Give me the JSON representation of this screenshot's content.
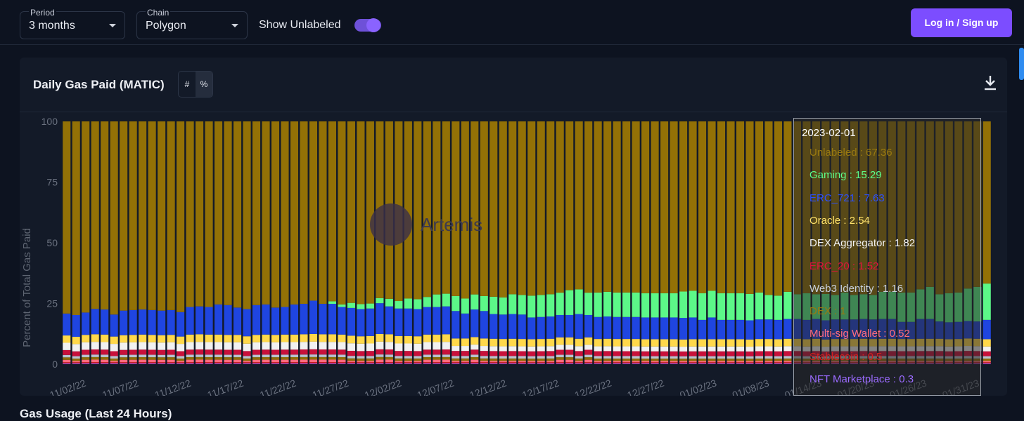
{
  "filters": {
    "period": {
      "label": "Period",
      "value": "3 months"
    },
    "chain": {
      "label": "Chain",
      "value": "Polygon"
    },
    "show_unlabeled": {
      "label": "Show Unlabeled",
      "on": true
    }
  },
  "auth": {
    "login_label": "Log in / Sign up"
  },
  "card": {
    "title": "Daily Gas Paid (MATIC)",
    "mode_options": [
      "#",
      "%"
    ],
    "active_mode": "%"
  },
  "watermark": "Artemis",
  "next_section_title": "Gas Usage (Last 24 Hours)",
  "tooltip": {
    "date": "2023-02-01",
    "rows": [
      {
        "name": "Unlabeled",
        "value": "67.36",
        "color": "#9a7a10"
      },
      {
        "name": "Gaming",
        "value": "15.29",
        "color": "#5dff8a"
      },
      {
        "name": "ERC_721",
        "value": "7.63",
        "color": "#2b4fff"
      },
      {
        "name": "Oracle",
        "value": "2.54",
        "color": "#ffe36b"
      },
      {
        "name": "DEX Aggregator",
        "value": "1.82",
        "color": "#f2f2f2"
      },
      {
        "name": "ERC_20",
        "value": "1.52",
        "color": "#e0143c"
      },
      {
        "name": "Web3 Identity",
        "value": "1.16",
        "color": "#c7cfdb"
      },
      {
        "name": "DEX",
        "value": "1",
        "color": "#9a7a10"
      },
      {
        "name": "Multi-sig Wallet",
        "value": "0.52",
        "color": "#ff6b7d"
      },
      {
        "name": "Stablecoin",
        "value": "0.5",
        "color": "#d42020"
      },
      {
        "name": "NFT Marketplace",
        "value": "0.3",
        "color": "#9b6bff"
      }
    ]
  },
  "chart_data": {
    "type": "bar",
    "stacked": true,
    "ylabel": "Percent of Total Gas Paid",
    "ylim": [
      0,
      100
    ],
    "yticks": [
      0,
      25,
      50,
      75,
      100
    ],
    "xticks": [
      "11/02/22",
      "11/07/22",
      "11/12/22",
      "11/17/22",
      "11/22/22",
      "11/27/22",
      "12/02/22",
      "12/07/22",
      "12/12/22",
      "12/17/22",
      "12/22/22",
      "12/27/22",
      "01/02/23",
      "01/08/23",
      "01/14/23",
      "01/20/23",
      "01/26/23",
      "01/31/23"
    ],
    "x_start": "2022-11-02",
    "x_end": "2023-02-01",
    "highlighted_category": "2023-02-01",
    "series_colors": {
      "Unlabeled": "#937106",
      "Gaming": "#5cf888",
      "ERC_721": "#1f45e0",
      "Oracle": "#ffd84a",
      "DEX Aggregator": "#f1f1f1",
      "ERC_20": "#c8103a",
      "Web3 Identity": "#b9c2cf",
      "DEX": "#8f6d08",
      "Multi-sig Wallet": "#ff6b7d",
      "Stablecoin": "#d41818",
      "NFT Marketplace": "#8a5cf5"
    },
    "series": [
      {
        "name": "Unlabeled",
        "values": [
          79,
          80,
          77,
          74,
          75,
          79,
          77,
          76,
          75,
          76,
          77,
          76,
          78,
          74,
          73,
          74,
          73,
          74,
          75,
          76,
          74,
          73,
          75,
          74,
          73,
          72,
          70,
          72,
          71,
          73,
          72,
          74,
          73,
          69,
          70,
          72,
          71,
          72,
          70,
          69,
          68,
          70,
          71,
          69,
          70,
          71,
          72,
          70,
          71,
          72,
          71,
          70,
          69,
          68,
          68,
          69,
          70,
          69,
          70,
          70,
          70,
          71,
          71,
          71,
          71,
          71,
          70,
          71,
          70,
          71,
          71,
          71,
          72,
          70,
          71,
          72,
          69,
          70,
          71,
          70,
          72,
          71,
          70,
          71,
          70,
          71,
          69,
          69,
          70,
          70,
          68,
          67,
          70,
          71,
          70,
          67,
          67,
          67
        ]
      },
      {
        "name": "Gaming",
        "values": [
          0,
          0,
          0,
          0,
          0,
          0,
          0,
          0,
          0,
          0,
          0,
          0,
          0,
          0,
          0,
          0,
          0,
          0,
          0,
          0,
          0,
          0,
          0,
          0,
          0,
          0,
          0,
          0,
          1,
          1,
          2,
          2,
          2,
          2,
          3,
          3,
          4,
          4,
          4,
          5,
          5,
          6,
          6,
          6,
          6,
          7,
          7,
          8,
          8,
          9,
          9,
          9,
          9,
          10,
          10,
          9,
          10,
          10,
          10,
          10,
          10,
          10,
          10,
          10,
          10,
          11,
          11,
          11,
          11,
          11,
          11,
          11,
          11,
          11,
          10,
          10,
          11,
          10,
          11,
          10,
          11,
          10,
          11,
          10,
          10,
          10,
          11,
          11,
          12,
          12,
          12,
          13,
          11,
          12,
          12,
          13,
          14,
          15
        ]
      },
      {
        "name": "ERC_721",
        "values": [
          9,
          9,
          9,
          10,
          10,
          9,
          10,
          10,
          10,
          10,
          10,
          10,
          10,
          11,
          11,
          11,
          12,
          12,
          11,
          11,
          12,
          12,
          11,
          11,
          12,
          12,
          13,
          12,
          12,
          11,
          11,
          11,
          11,
          12,
          11,
          11,
          11,
          11,
          11,
          11,
          11,
          11,
          10,
          11,
          11,
          10,
          10,
          10,
          10,
          9,
          9,
          9,
          9,
          9,
          10,
          9,
          9,
          9,
          9,
          9,
          9,
          9,
          9,
          9,
          9,
          9,
          9,
          8,
          9,
          8,
          8,
          8,
          8,
          8,
          8,
          8,
          8,
          8,
          8,
          8,
          8,
          8,
          8,
          8,
          8,
          8,
          8,
          8,
          7,
          7,
          8,
          8,
          7,
          7,
          7,
          7,
          7,
          8
        ]
      },
      {
        "name": "Oracle",
        "values": [
          3,
          3,
          3,
          3,
          3,
          3,
          3,
          3,
          3,
          3,
          3,
          3,
          3,
          3,
          3,
          3,
          3,
          3,
          3,
          3,
          3,
          3,
          3,
          3,
          3,
          3,
          3,
          3,
          3,
          3,
          3,
          3,
          3,
          3,
          3,
          3,
          3,
          3,
          3,
          3,
          3,
          3,
          3,
          3,
          3,
          3,
          3,
          3,
          3,
          3,
          3,
          3,
          3,
          3,
          3,
          3,
          3,
          3,
          3,
          3,
          3,
          3,
          3,
          3,
          3,
          3,
          3,
          3,
          3,
          3,
          3,
          3,
          3,
          3,
          3,
          3,
          3,
          3,
          3,
          3,
          3,
          3,
          3,
          3,
          3,
          3,
          3,
          3,
          3,
          3,
          3,
          3,
          3,
          3,
          3,
          3,
          3,
          3
        ]
      },
      {
        "name": "DEX Aggregator",
        "values": [
          3,
          3,
          3,
          3,
          3,
          3,
          3,
          3,
          3,
          3,
          3,
          3,
          3,
          3,
          3,
          3,
          3,
          3,
          3,
          3,
          3,
          3,
          3,
          3,
          3,
          3,
          3,
          3,
          3,
          3,
          3,
          3,
          3,
          3,
          3,
          3,
          3,
          3,
          3,
          3,
          3,
          2,
          2,
          2,
          2,
          2,
          2,
          2,
          2,
          2,
          2,
          2,
          2,
          2,
          2,
          2,
          2,
          2,
          2,
          2,
          2,
          2,
          2,
          2,
          2,
          2,
          2,
          2,
          2,
          2,
          2,
          2,
          2,
          2,
          2,
          2,
          2,
          2,
          2,
          2,
          2,
          2,
          2,
          2,
          2,
          2,
          2,
          2,
          2,
          2,
          2,
          2,
          2,
          2,
          2,
          2,
          2,
          2
        ]
      },
      {
        "name": "ERC_20",
        "values": [
          2,
          2,
          2,
          2,
          2,
          2,
          2,
          2,
          2,
          2,
          2,
          2,
          2,
          2,
          2,
          2,
          2,
          2,
          2,
          2,
          2,
          2,
          2,
          2,
          2,
          2,
          2,
          2,
          2,
          2,
          2,
          2,
          2,
          2,
          2,
          2,
          2,
          2,
          2,
          2,
          2,
          2,
          2,
          2,
          2,
          2,
          2,
          2,
          2,
          2,
          2,
          2,
          2,
          2,
          2,
          2,
          2,
          2,
          2,
          2,
          2,
          2,
          2,
          2,
          2,
          2,
          2,
          2,
          2,
          2,
          2,
          2,
          2,
          2,
          2,
          2,
          2,
          2,
          2,
          2,
          2,
          2,
          2,
          2,
          2,
          2,
          2,
          2,
          2,
          2,
          2,
          2,
          2,
          2,
          2,
          2,
          2,
          2
        ]
      },
      {
        "name": "Web3 Identity",
        "values": [
          1,
          1,
          1,
          1,
          1,
          1,
          1,
          1,
          1,
          1,
          1,
          1,
          1,
          1,
          1,
          1,
          1,
          1,
          1,
          1,
          1,
          1,
          1,
          1,
          1,
          1,
          1,
          1,
          1,
          1,
          1,
          1,
          1,
          1,
          1,
          1,
          1,
          1,
          1,
          1,
          1,
          1,
          1,
          1,
          1,
          1,
          1,
          1,
          1,
          1,
          1,
          1,
          1,
          1,
          1,
          1,
          1,
          1,
          1,
          1,
          1,
          1,
          1,
          1,
          1,
          1,
          1,
          1,
          1,
          1,
          1,
          1,
          1,
          1,
          1,
          1,
          1,
          1,
          1,
          1,
          1,
          1,
          1,
          1,
          1,
          1,
          1,
          1,
          1,
          1,
          1,
          1,
          1,
          1,
          1,
          1,
          1,
          1
        ]
      },
      {
        "name": "DEX",
        "values": [
          1,
          1,
          1,
          1,
          1,
          1,
          1,
          1,
          1,
          1,
          1,
          1,
          1,
          1,
          1,
          1,
          1,
          1,
          1,
          1,
          1,
          1,
          1,
          1,
          1,
          1,
          1,
          1,
          1,
          1,
          1,
          1,
          1,
          1,
          1,
          1,
          1,
          1,
          1,
          1,
          1,
          1,
          1,
          1,
          1,
          1,
          1,
          1,
          1,
          1,
          1,
          1,
          1,
          1,
          1,
          1,
          1,
          1,
          1,
          1,
          1,
          1,
          1,
          1,
          1,
          1,
          1,
          1,
          1,
          1,
          1,
          1,
          1,
          1,
          1,
          1,
          1,
          1,
          1,
          1,
          1,
          1,
          1,
          1,
          1,
          1,
          1,
          1,
          1,
          1,
          1,
          1,
          1,
          1,
          1,
          1,
          1,
          1
        ]
      },
      {
        "name": "Multi-sig Wallet",
        "values": [
          1,
          0.5,
          1,
          1,
          1,
          0.5,
          1,
          1,
          1,
          1,
          1,
          1,
          0.5,
          1,
          1,
          1,
          1,
          1,
          1,
          0.5,
          1,
          1,
          1,
          1,
          1,
          1,
          1,
          1,
          1,
          1,
          0.5,
          0.5,
          0.5,
          1,
          1,
          0.5,
          0.5,
          0.5,
          1,
          1,
          1,
          0.5,
          0.5,
          1,
          0.5,
          0.5,
          0.5,
          0.5,
          0.5,
          0.5,
          0.5,
          0.5,
          1,
          1,
          0.5,
          1,
          0.5,
          0.5,
          0.5,
          0.5,
          0.5,
          0.5,
          0.5,
          0.5,
          0.5,
          0.5,
          0.5,
          0.5,
          0.5,
          0.5,
          0.5,
          0.5,
          0.5,
          0.5,
          0.5,
          0.5,
          0.5,
          0.5,
          0.5,
          0.5,
          0.5,
          0.5,
          0.5,
          0.5,
          0.5,
          0.5,
          0.5,
          0.5,
          0.5,
          0.5,
          0.5,
          0.5,
          0.5,
          0.5,
          0.5,
          0.5,
          0.5,
          0.5
        ]
      },
      {
        "name": "Stablecoin",
        "values": [
          0.5,
          0.5,
          0.5,
          0.5,
          0.5,
          0.5,
          0.5,
          0.5,
          0.5,
          0.5,
          0.5,
          0.5,
          0.5,
          0.5,
          0.5,
          0.5,
          0.5,
          0.5,
          0.5,
          0.5,
          0.5,
          0.5,
          0.5,
          0.5,
          0.5,
          0.5,
          0.5,
          0.5,
          0.5,
          0.5,
          0.5,
          0.5,
          0.5,
          0.5,
          0.5,
          0.5,
          0.5,
          0.5,
          0.5,
          0.5,
          0.5,
          0.5,
          0.5,
          0.5,
          0.5,
          0.5,
          0.5,
          0.5,
          0.5,
          0.5,
          0.5,
          0.5,
          0.5,
          0.5,
          0.5,
          0.5,
          0.5,
          0.5,
          0.5,
          0.5,
          0.5,
          0.5,
          0.5,
          0.5,
          0.5,
          0.5,
          0.5,
          0.5,
          0.5,
          0.5,
          0.5,
          0.5,
          0.5,
          0.5,
          0.5,
          0.5,
          0.5,
          0.5,
          0.5,
          0.5,
          0.5,
          0.5,
          0.5,
          0.5,
          0.5,
          0.5,
          0.5,
          0.5,
          0.5,
          0.5,
          0.5,
          0.5,
          0.5,
          0.5,
          0.5,
          0.5,
          0.5,
          0.5
        ]
      },
      {
        "name": "NFT Marketplace",
        "values": [
          0.3,
          0.3,
          0.3,
          0.3,
          0.3,
          0.3,
          0.3,
          0.3,
          0.3,
          0.3,
          0.3,
          0.3,
          0.3,
          0.3,
          0.3,
          0.3,
          0.3,
          0.3,
          0.3,
          0.3,
          0.3,
          0.3,
          0.3,
          0.3,
          0.3,
          0.3,
          0.3,
          0.3,
          0.3,
          0.3,
          0.3,
          0.3,
          0.3,
          0.3,
          0.3,
          0.3,
          0.3,
          0.3,
          0.3,
          0.3,
          0.3,
          0.3,
          0.3,
          0.3,
          0.3,
          0.3,
          0.3,
          0.3,
          0.3,
          0.3,
          0.3,
          0.3,
          0.3,
          0.3,
          0.3,
          0.3,
          0.3,
          0.3,
          0.3,
          0.3,
          0.3,
          0.3,
          0.3,
          0.3,
          0.3,
          0.3,
          0.3,
          0.3,
          0.3,
          0.3,
          0.3,
          0.3,
          0.3,
          0.3,
          0.3,
          0.3,
          0.3,
          0.3,
          0.3,
          0.3,
          0.3,
          0.3,
          0.3,
          0.3,
          0.3,
          0.3,
          0.3,
          0.3,
          0.3,
          0.3,
          0.3,
          0.3,
          0.3,
          0.3,
          0.3,
          0.3,
          0.3,
          0.3
        ]
      }
    ]
  }
}
